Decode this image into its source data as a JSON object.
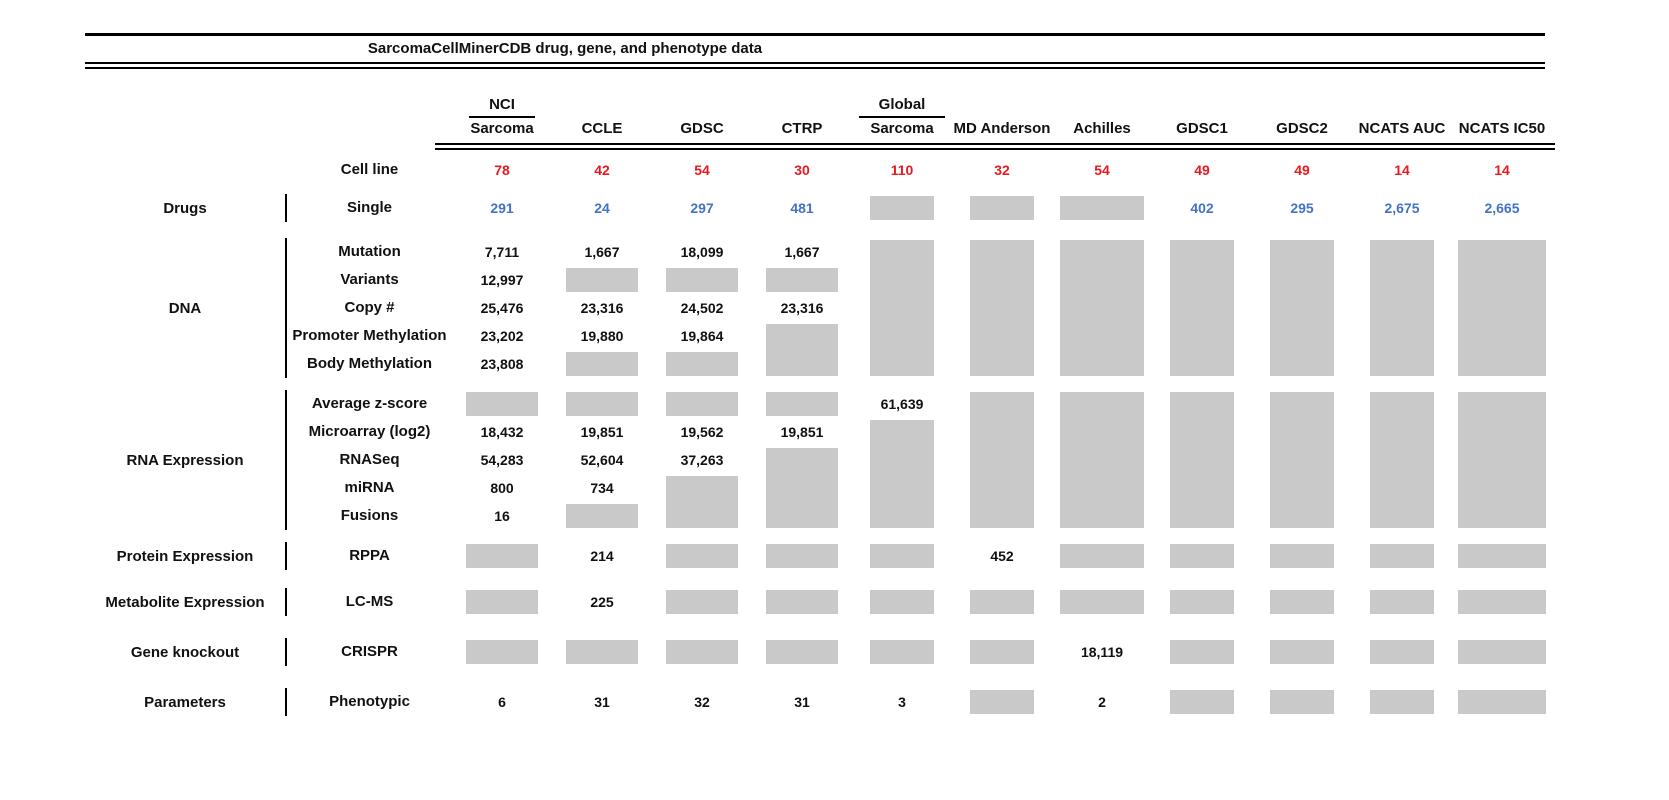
{
  "title": "SarcomaCellMinerCDB drug, gene, and phenotype data",
  "colors": {
    "red": "#e8191f",
    "blue": "#4472c4",
    "gray": "#c9c9c9",
    "black": "#111111"
  },
  "header": {
    "columns": [
      {
        "line1": "NCI",
        "line2": "Sarcoma",
        "underline": true
      },
      {
        "line1": "",
        "line2": "CCLE",
        "underline": false
      },
      {
        "line1": "",
        "line2": "GDSC",
        "underline": false
      },
      {
        "line1": "",
        "line2": "CTRP",
        "underline": false
      },
      {
        "line1": "Global",
        "line2": "Sarcoma",
        "underline": true
      },
      {
        "line1": "",
        "line2": "MD Anderson",
        "underline": false
      },
      {
        "line1": "",
        "line2": "Achilles",
        "underline": false
      },
      {
        "line1": "",
        "line2": "GDSC1",
        "underline": false
      },
      {
        "line1": "",
        "line2": "GDSC2",
        "underline": false
      },
      {
        "line1": "",
        "line2": "NCATS AUC",
        "underline": false
      },
      {
        "line1": "",
        "line2": "NCATS IC50",
        "underline": false
      }
    ],
    "cell_line_label": "Cell line",
    "cell_line_counts": [
      "78",
      "42",
      "54",
      "30",
      "110",
      "32",
      "54",
      "49",
      "49",
      "14",
      "14"
    ]
  },
  "sections": [
    {
      "category": "Drugs",
      "rows": [
        "Single"
      ],
      "value_color": "blue",
      "cells": [
        [
          {
            "t": "291"
          }
        ],
        [
          {
            "t": "24"
          }
        ],
        [
          {
            "t": "297"
          }
        ],
        [
          {
            "t": "481"
          }
        ],
        [
          {
            "g": 1
          }
        ],
        [
          {
            "g": 1
          }
        ],
        [
          {
            "g": 1
          }
        ],
        [
          {
            "t": "402"
          }
        ],
        [
          {
            "t": "295"
          }
        ],
        [
          {
            "t": "2,675"
          }
        ],
        [
          {
            "t": "2,665"
          }
        ]
      ]
    },
    {
      "category": "DNA",
      "rows": [
        "Mutation",
        "Variants",
        "Copy #",
        "Promoter Methylation",
        "Body Methylation"
      ],
      "value_color": "black",
      "cells": [
        [
          {
            "t": "7,711"
          },
          {
            "t": "12,997"
          },
          {
            "t": "25,476"
          },
          {
            "t": "23,202"
          },
          {
            "t": "23,808"
          }
        ],
        [
          {
            "t": "1,667"
          },
          {
            "g": 1
          },
          {
            "t": "23,316"
          },
          {
            "t": "19,880"
          },
          {
            "g": 1
          }
        ],
        [
          {
            "t": "18,099"
          },
          {
            "g": 1
          },
          {
            "t": "24,502"
          },
          {
            "t": "19,864"
          },
          {
            "g": 1
          }
        ],
        [
          {
            "t": "1,667"
          },
          {
            "g": 1
          },
          {
            "t": "23,316"
          },
          {
            "g": 2
          }
        ],
        [
          {
            "g": 5
          }
        ],
        [
          {
            "g": 5
          }
        ],
        [
          {
            "g": 5
          }
        ],
        [
          {
            "g": 5
          }
        ],
        [
          {
            "g": 5
          }
        ],
        [
          {
            "g": 5
          }
        ],
        [
          {
            "g": 5
          }
        ]
      ]
    },
    {
      "category": "RNA Expression",
      "rows": [
        "Average z-score",
        "Microarray (log2)",
        "RNASeq",
        "miRNA",
        "Fusions"
      ],
      "value_color": "black",
      "cells": [
        [
          {
            "g": 1
          },
          {
            "t": "18,432"
          },
          {
            "t": "54,283"
          },
          {
            "t": "800"
          },
          {
            "t": "16"
          }
        ],
        [
          {
            "g": 1
          },
          {
            "t": "19,851"
          },
          {
            "t": "52,604"
          },
          {
            "t": "734"
          },
          {
            "g": 1
          }
        ],
        [
          {
            "g": 1
          },
          {
            "t": "19,562"
          },
          {
            "t": "37,263"
          },
          {
            "g": 2
          }
        ],
        [
          {
            "g": 1
          },
          {
            "t": "19,851"
          },
          {
            "g": 3
          }
        ],
        [
          {
            "t": "61,639"
          },
          {
            "g": 4
          }
        ],
        [
          {
            "g": 5
          }
        ],
        [
          {
            "g": 5
          }
        ],
        [
          {
            "g": 5
          }
        ],
        [
          {
            "g": 5
          }
        ],
        [
          {
            "g": 5
          }
        ],
        [
          {
            "g": 5
          }
        ]
      ]
    },
    {
      "category": "Protein Expression",
      "rows": [
        "RPPA"
      ],
      "value_color": "black",
      "cells": [
        [
          {
            "g": 1
          }
        ],
        [
          {
            "t": "214"
          }
        ],
        [
          {
            "g": 1
          }
        ],
        [
          {
            "g": 1
          }
        ],
        [
          {
            "g": 1
          }
        ],
        [
          {
            "t": "452"
          }
        ],
        [
          {
            "g": 1
          }
        ],
        [
          {
            "g": 1
          }
        ],
        [
          {
            "g": 1
          }
        ],
        [
          {
            "g": 1
          }
        ],
        [
          {
            "g": 1
          }
        ]
      ]
    },
    {
      "category": "Metabolite Expression",
      "rows": [
        "LC-MS"
      ],
      "value_color": "black",
      "cells": [
        [
          {
            "g": 1
          }
        ],
        [
          {
            "t": "225"
          }
        ],
        [
          {
            "g": 1
          }
        ],
        [
          {
            "g": 1
          }
        ],
        [
          {
            "g": 1
          }
        ],
        [
          {
            "g": 1
          }
        ],
        [
          {
            "g": 1
          }
        ],
        [
          {
            "g": 1
          }
        ],
        [
          {
            "g": 1
          }
        ],
        [
          {
            "g": 1
          }
        ],
        [
          {
            "g": 1
          }
        ]
      ]
    },
    {
      "category": "Gene knockout",
      "rows": [
        "CRISPR"
      ],
      "value_color": "black",
      "cells": [
        [
          {
            "g": 1
          }
        ],
        [
          {
            "g": 1
          }
        ],
        [
          {
            "g": 1
          }
        ],
        [
          {
            "g": 1
          }
        ],
        [
          {
            "g": 1
          }
        ],
        [
          {
            "g": 1
          }
        ],
        [
          {
            "t": "18,119"
          }
        ],
        [
          {
            "g": 1
          }
        ],
        [
          {
            "g": 1
          }
        ],
        [
          {
            "g": 1
          }
        ],
        [
          {
            "g": 1
          }
        ]
      ]
    },
    {
      "category": "Parameters",
      "rows": [
        "Phenotypic"
      ],
      "value_color": "black",
      "cells": [
        [
          {
            "t": "6"
          }
        ],
        [
          {
            "t": "31"
          }
        ],
        [
          {
            "t": "32"
          }
        ],
        [
          {
            "t": "31"
          }
        ],
        [
          {
            "t": "3"
          }
        ],
        [
          {
            "g": 1
          }
        ],
        [
          {
            "t": "2"
          }
        ],
        [
          {
            "g": 1
          }
        ],
        [
          {
            "g": 1
          }
        ],
        [
          {
            "g": 1
          }
        ],
        [
          {
            "g": 1
          }
        ]
      ]
    }
  ],
  "chart_data": {
    "type": "table",
    "title": "SarcomaCellMinerCDB drug, gene, and phenotype data",
    "columns": [
      "NCI Sarcoma",
      "CCLE",
      "GDSC",
      "CTRP",
      "Global Sarcoma",
      "MD Anderson",
      "Achilles",
      "GDSC1",
      "GDSC2",
      "NCATS AUC",
      "NCATS IC50"
    ],
    "no_data_marker": "gray box (null)",
    "rows": [
      {
        "group": "",
        "measure": "Cell line",
        "values": [
          78,
          42,
          54,
          30,
          110,
          32,
          54,
          49,
          49,
          14,
          14
        ]
      },
      {
        "group": "Drugs",
        "measure": "Single",
        "values": [
          291,
          24,
          297,
          481,
          null,
          null,
          null,
          402,
          295,
          2675,
          2665
        ]
      },
      {
        "group": "DNA",
        "measure": "Mutation",
        "values": [
          7711,
          1667,
          18099,
          1667,
          null,
          null,
          null,
          null,
          null,
          null,
          null
        ]
      },
      {
        "group": "DNA",
        "measure": "Variants",
        "values": [
          12997,
          null,
          null,
          null,
          null,
          null,
          null,
          null,
          null,
          null,
          null
        ]
      },
      {
        "group": "DNA",
        "measure": "Copy #",
        "values": [
          25476,
          23316,
          24502,
          23316,
          null,
          null,
          null,
          null,
          null,
          null,
          null
        ]
      },
      {
        "group": "DNA",
        "measure": "Promoter Methylation",
        "values": [
          23202,
          19880,
          19864,
          null,
          null,
          null,
          null,
          null,
          null,
          null,
          null
        ]
      },
      {
        "group": "DNA",
        "measure": "Body Methylation",
        "values": [
          23808,
          null,
          null,
          null,
          null,
          null,
          null,
          null,
          null,
          null,
          null
        ]
      },
      {
        "group": "RNA Expression",
        "measure": "Average z-score",
        "values": [
          null,
          null,
          null,
          null,
          61639,
          null,
          null,
          null,
          null,
          null,
          null
        ]
      },
      {
        "group": "RNA Expression",
        "measure": "Microarray (log2)",
        "values": [
          18432,
          19851,
          19562,
          19851,
          null,
          null,
          null,
          null,
          null,
          null,
          null
        ]
      },
      {
        "group": "RNA Expression",
        "measure": "RNASeq",
        "values": [
          54283,
          52604,
          37263,
          null,
          null,
          null,
          null,
          null,
          null,
          null,
          null
        ]
      },
      {
        "group": "RNA Expression",
        "measure": "miRNA",
        "values": [
          800,
          734,
          null,
          null,
          null,
          null,
          null,
          null,
          null,
          null,
          null
        ]
      },
      {
        "group": "RNA Expression",
        "measure": "Fusions",
        "values": [
          16,
          null,
          null,
          null,
          null,
          null,
          null,
          null,
          null,
          null,
          null
        ]
      },
      {
        "group": "Protein Expression",
        "measure": "RPPA",
        "values": [
          null,
          214,
          null,
          null,
          null,
          452,
          null,
          null,
          null,
          null,
          null
        ]
      },
      {
        "group": "Metabolite Expression",
        "measure": "LC-MS",
        "values": [
          null,
          225,
          null,
          null,
          null,
          null,
          null,
          null,
          null,
          null,
          null
        ]
      },
      {
        "group": "Gene knockout",
        "measure": "CRISPR",
        "values": [
          null,
          null,
          null,
          null,
          null,
          null,
          18119,
          null,
          null,
          null,
          null
        ]
      },
      {
        "group": "Parameters",
        "measure": "Phenotypic",
        "values": [
          6,
          31,
          32,
          31,
          3,
          null,
          2,
          null,
          null,
          null,
          null
        ]
      }
    ]
  }
}
